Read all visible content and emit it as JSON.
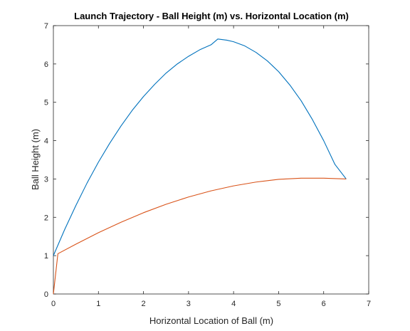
{
  "chart_data": {
    "type": "line",
    "title": "Launch Trajectory - Ball Height (m) vs. Horizontal Location (m)",
    "xlabel": "Horizontal Location of Ball (m)",
    "ylabel": "Ball Height (m)",
    "xlim": [
      0,
      7
    ],
    "ylim": [
      0,
      7
    ],
    "xticks": [
      0,
      1,
      2,
      3,
      4,
      5,
      6,
      7
    ],
    "yticks": [
      0,
      1,
      2,
      3,
      4,
      5,
      6,
      7
    ],
    "grid": false,
    "legend": "none",
    "series": [
      {
        "color": "#0072BD",
        "points": [
          [
            0.0,
            1.0
          ],
          [
            0.25,
            1.68
          ],
          [
            0.5,
            2.31
          ],
          [
            0.75,
            2.9
          ],
          [
            1.0,
            3.44
          ],
          [
            1.25,
            3.93
          ],
          [
            1.5,
            4.38
          ],
          [
            1.75,
            4.79
          ],
          [
            2.0,
            5.15
          ],
          [
            2.25,
            5.47
          ],
          [
            2.5,
            5.76
          ],
          [
            2.75,
            6.0
          ],
          [
            3.0,
            6.2
          ],
          [
            3.25,
            6.37
          ],
          [
            3.5,
            6.5
          ],
          [
            3.65,
            6.65
          ],
          [
            3.85,
            6.62
          ],
          [
            4.0,
            6.58
          ],
          [
            4.25,
            6.47
          ],
          [
            4.5,
            6.3
          ],
          [
            4.75,
            6.08
          ],
          [
            5.0,
            5.8
          ],
          [
            5.25,
            5.45
          ],
          [
            5.5,
            5.04
          ],
          [
            5.75,
            4.55
          ],
          [
            6.0,
            4.0
          ],
          [
            6.25,
            3.38
          ],
          [
            6.5,
            3.0
          ]
        ]
      },
      {
        "color": "#D95319",
        "points": [
          [
            0.0,
            0.0
          ],
          [
            0.1,
            1.05
          ],
          [
            0.5,
            1.3
          ],
          [
            1.0,
            1.6
          ],
          [
            1.5,
            1.87
          ],
          [
            2.0,
            2.12
          ],
          [
            2.5,
            2.34
          ],
          [
            3.0,
            2.53
          ],
          [
            3.5,
            2.69
          ],
          [
            4.0,
            2.82
          ],
          [
            4.5,
            2.92
          ],
          [
            5.0,
            2.99
          ],
          [
            5.5,
            3.02
          ],
          [
            6.0,
            3.02
          ],
          [
            6.5,
            3.0
          ]
        ]
      }
    ]
  }
}
